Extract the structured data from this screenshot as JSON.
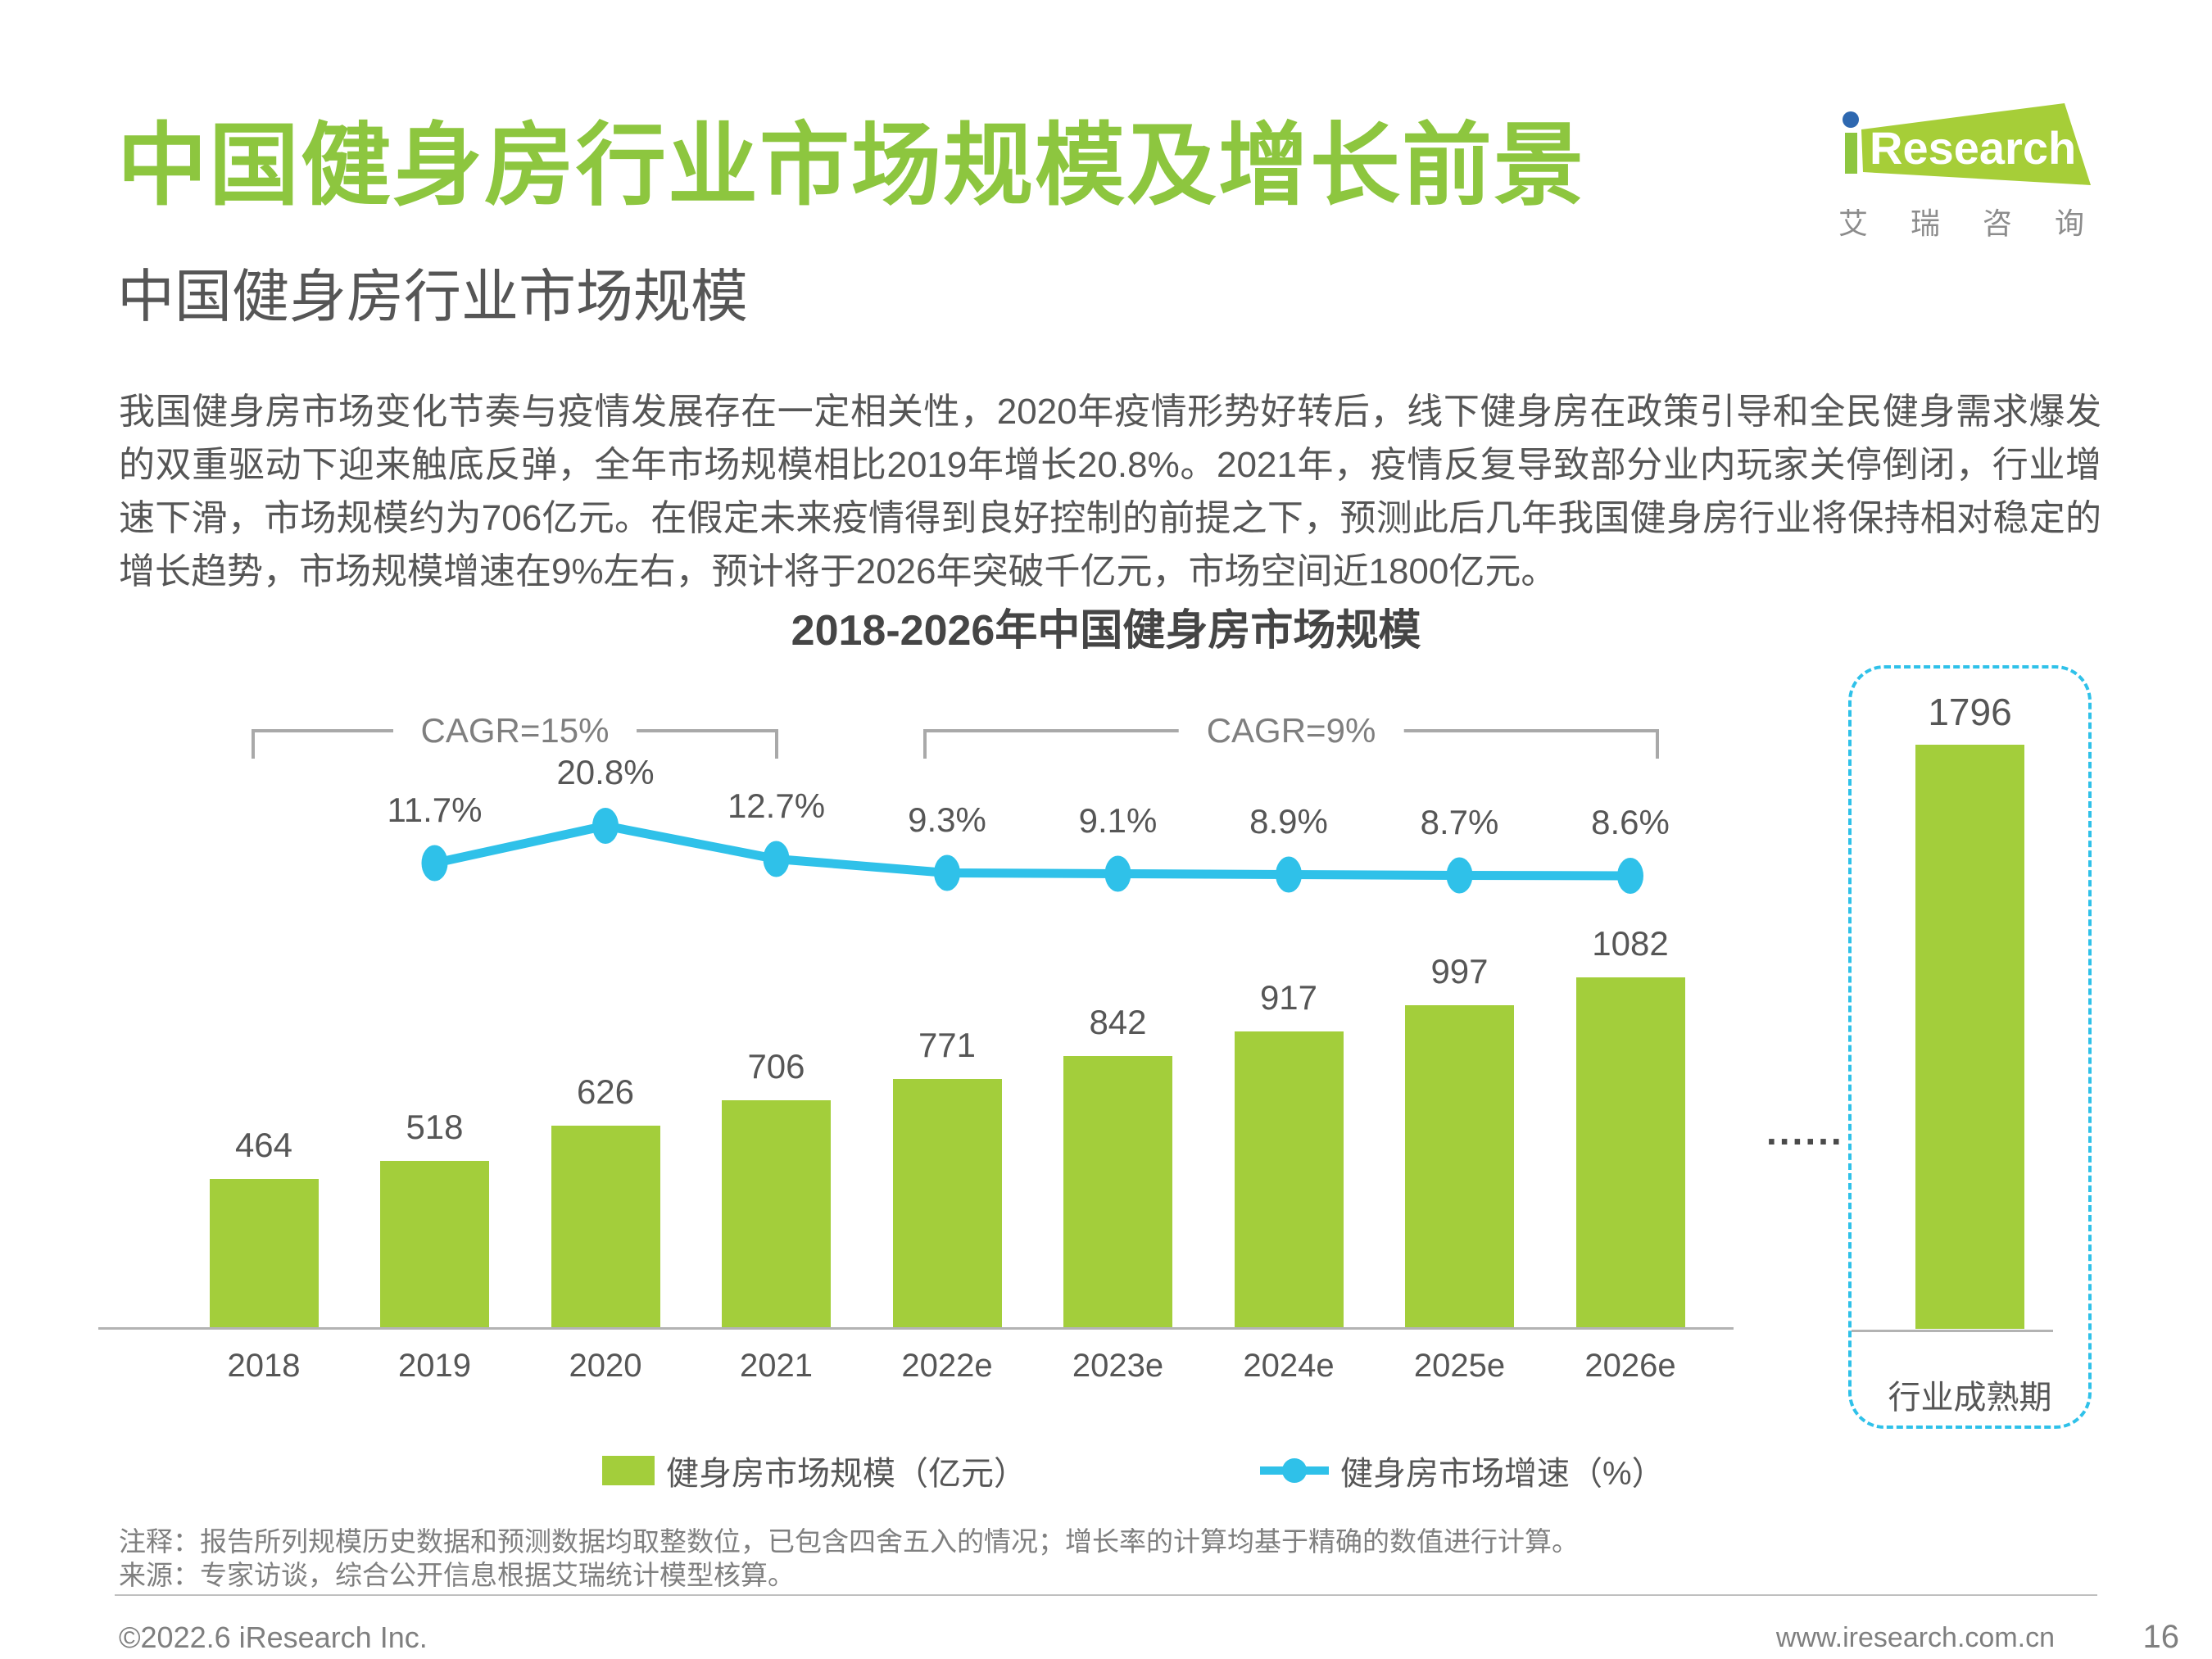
{
  "header": {
    "title": "中国健身房行业市场规模及增长前景",
    "subtitle": "中国健身房行业市场规模",
    "paragraph": "我国健身房市场变化节奏与疫情发展存在一定相关性，2020年疫情形势好转后，线下健身房在政策引导和全民健身需求爆发的双重驱动下迎来触底反弹，全年市场规模相比2019年增长20.8%。2021年，疫情反复导致部分业内玩家关停倒闭，行业增速下滑，市场规模约为706亿元。在假定未来疫情得到良好控制的前提之下，预测此后几年我国健身房行业将保持相对稳定的增长趋势，市场规模增速在9%左右，预计将于2026年突破千亿元，市场空间近1800亿元。"
  },
  "logo": {
    "research": "Research",
    "cn": "艾瑞咨询"
  },
  "chart_data": {
    "type": "bar",
    "title": "2018-2026年中国健身房市场规模",
    "categories": [
      "2018",
      "2019",
      "2020",
      "2021",
      "2022e",
      "2023e",
      "2024e",
      "2025e",
      "2026e"
    ],
    "series": [
      {
        "name": "健身房市场规模（亿元）",
        "type": "bar",
        "unit": "亿元",
        "values": [
          464,
          518,
          626,
          706,
          771,
          842,
          917,
          997,
          1082
        ]
      },
      {
        "name": "健身房市场增速（%）",
        "type": "line",
        "unit": "%",
        "x": [
          "2019",
          "2020",
          "2021",
          "2022e",
          "2023e",
          "2024e",
          "2025e",
          "2026e"
        ],
        "values": [
          11.7,
          20.8,
          12.7,
          9.3,
          9.1,
          8.9,
          8.7,
          8.6
        ]
      }
    ],
    "annotations": {
      "cagr_left": "CAGR=15%",
      "cagr_left_span": [
        "2018",
        "2021"
      ],
      "cagr_right": "CAGR=9%",
      "cagr_right_span": [
        "2022e",
        "2026e"
      ],
      "ellipsis": "......",
      "maturity": {
        "label": "行业成熟期",
        "value": 1796
      }
    },
    "colors": {
      "bar": "#a3ce3b",
      "line": "#2fc1e9",
      "box_border": "#2fc1e9"
    },
    "grid": false,
    "legend_position": "bottom",
    "ylim": [
      0,
      1900
    ]
  },
  "notes": [
    "注释：报告所列规模历史数据和预测数据均取整数位，已包含四舍五入的情况；增长率的计算均基于精确的数值进行计算。",
    "来源：专家访谈，综合公开信息根据艾瑞统计模型核算。"
  ],
  "footer": {
    "copyright": "©2022.6 iResearch Inc.",
    "url": "www.iresearch.com.cn",
    "page": "16"
  }
}
